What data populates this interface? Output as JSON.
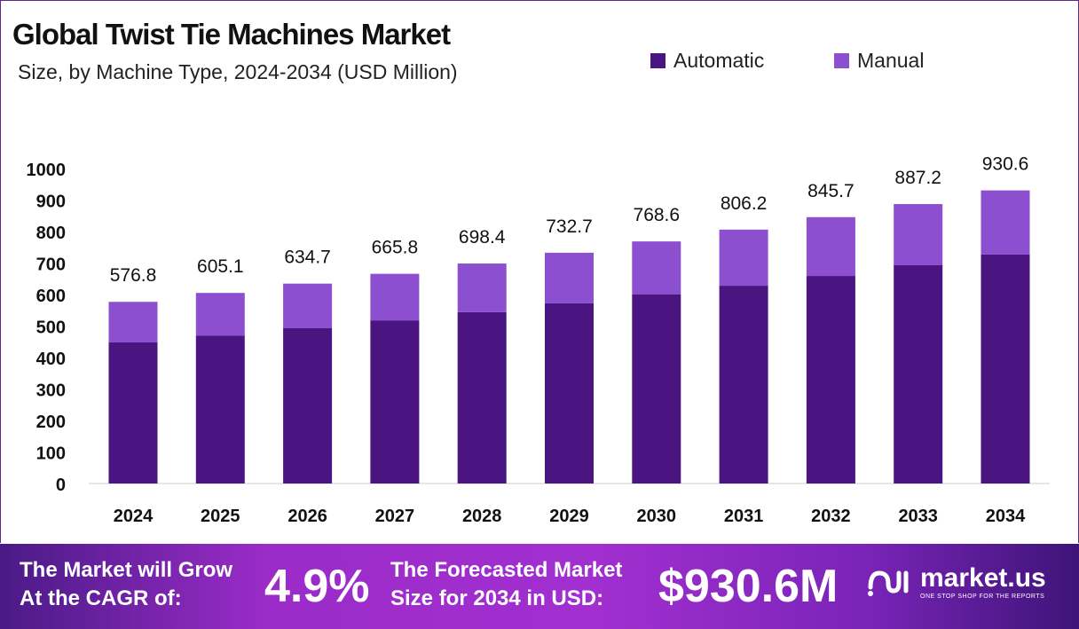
{
  "chart_data": {
    "type": "bar",
    "stacked": true,
    "title": "Global Twist Tie Machines Market",
    "subtitle": "Size, by Machine Type, 2024-2034 (USD Million)",
    "categories": [
      "2024",
      "2025",
      "2026",
      "2027",
      "2028",
      "2029",
      "2030",
      "2031",
      "2032",
      "2033",
      "2034"
    ],
    "series": [
      {
        "name": "Automatic",
        "color": "#4a1580",
        "values": [
          448,
          470,
          493,
          518,
          544,
          572,
          600,
          628,
          659,
          693,
          727
        ]
      },
      {
        "name": "Manual",
        "color": "#8b4fcf",
        "values": [
          128.8,
          135.1,
          141.7,
          147.8,
          154.4,
          160.7,
          168.6,
          178.2,
          186.7,
          194.2,
          203.6
        ]
      }
    ],
    "totals": [
      "576.8",
      "605.1",
      "634.7",
      "665.8",
      "698.4",
      "732.7",
      "768.6",
      "806.2",
      "845.7",
      "887.2",
      "930.6"
    ],
    "yticks": [
      0,
      100,
      200,
      300,
      400,
      500,
      600,
      700,
      800,
      900,
      1000
    ],
    "ylim": [
      0,
      1000
    ],
    "grid": false,
    "legend_position": "top-right"
  },
  "banner": {
    "cagr_label_1": "The Market will Grow",
    "cagr_label_2": "At the CAGR of:",
    "cagr_value": "4.9%",
    "forecast_label_1": "The Forecasted Market",
    "forecast_label_2": "Size for 2034 in USD:",
    "forecast_value": "$930.6M",
    "logo_name": "market.us",
    "logo_tagline": "ONE STOP SHOP FOR THE REPORTS"
  }
}
